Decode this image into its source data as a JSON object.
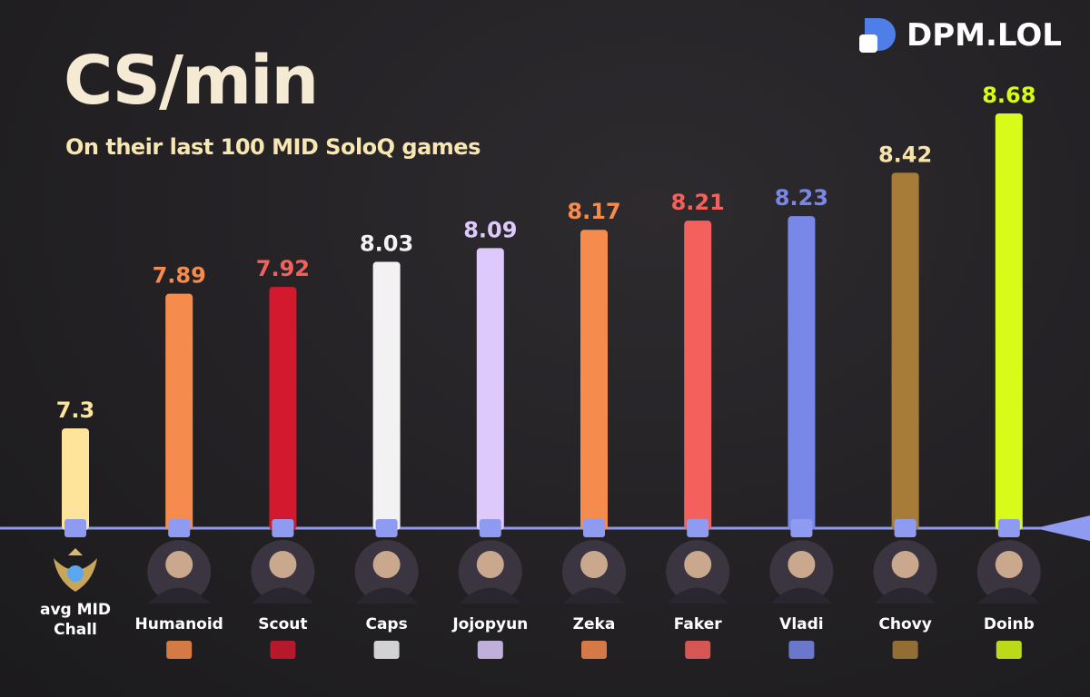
{
  "brand": {
    "name": "DPM.LOL",
    "color": "#4f7ee8"
  },
  "header": {
    "title": "CS/min",
    "subtitle": "On their last 100 MID SoloQ games"
  },
  "chart_data": {
    "type": "bar",
    "title": "CS/min",
    "subtitle": "On their last 100 MID SoloQ games",
    "xlabel": "",
    "ylabel": "",
    "grid": false,
    "categories": [
      "avg MID Chall",
      "Humanoid",
      "Scout",
      "Caps",
      "Jojopyun",
      "Zeka",
      "Faker",
      "Vladi",
      "Chovy",
      "Doinb"
    ],
    "values": [
      7.3,
      7.89,
      7.92,
      8.03,
      8.09,
      8.17,
      8.21,
      8.23,
      8.42,
      8.68
    ],
    "value_labels": [
      "7.3",
      "7.89",
      "7.92",
      "8.03",
      "8.09",
      "8.17",
      "8.21",
      "8.23",
      "8.42",
      "8.68"
    ],
    "colors": [
      "#fde49a",
      "#f58b4c",
      "#d2192e",
      "#f2f2f2",
      "#ddc9fb",
      "#f58b4c",
      "#f4605c",
      "#7887e8",
      "#a67c38",
      "#d9fb19"
    ],
    "label_colors": [
      "#fde49a",
      "#f58b4c",
      "#f4605c",
      "#f2f2f2",
      "#ddc9fb",
      "#f58b4c",
      "#f4605c",
      "#7887e8",
      "#f8e4a8",
      "#d9fb19"
    ],
    "team_icons": [
      "challenger-emblem-icon",
      "fnatic-logo-icon",
      "jdg-logo-icon",
      "g2-logo-icon",
      "koi-logo-icon",
      "hanwha-logo-icon",
      "t1-logo-icon",
      "kcorp-logo-icon",
      "geng-logo-icon",
      "nip-logo-icon"
    ],
    "ylim": [
      7.0,
      8.75
    ],
    "axis_color": "#8f9bf0"
  }
}
